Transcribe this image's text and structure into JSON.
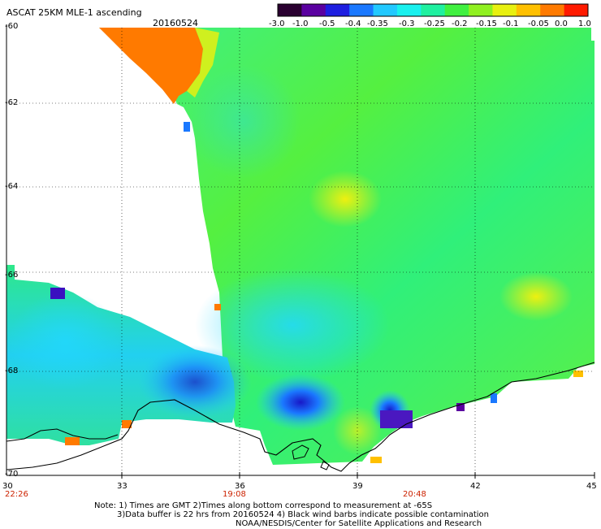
{
  "header": {
    "title": "ASCAT 25KM MLE-1 ascending",
    "date": "20160524"
  },
  "colorbar": {
    "labels": [
      "-3.0",
      "-1.0",
      "-0.5",
      "-0.4",
      "-0.35",
      "-0.3",
      "-0.25",
      "-0.2",
      "-0.15",
      "-0.1",
      "-0.05",
      "0.0",
      "1.0"
    ],
    "colors": [
      "#2a0030",
      "#5a00a0",
      "#1e1ee0",
      "#1a78ff",
      "#22c8ff",
      "#19f0ee",
      "#1ff0a0",
      "#40f040",
      "#90f020",
      "#e8f010",
      "#ffc000",
      "#ff7a00",
      "#ff1a00"
    ]
  },
  "map": {
    "lat_labels": [
      "-60",
      "-62",
      "-64",
      "-66",
      "-68",
      "-70"
    ],
    "lon_labels": [
      "30",
      "33",
      "36",
      "39",
      "42",
      "45"
    ],
    "time_labels": [
      "22:26",
      "19:08",
      "20:48"
    ]
  },
  "footer": {
    "line1": "Note: 1) Times are GMT 2)Times along bottom correspond to measurement at -65S",
    "line2": "3)Data buffer is 22 hrs from 20160524 4) Black wind barbs indicate possible contamination",
    "line3": "NOAA/NESDIS/Center for Satellite Applications and Research"
  }
}
